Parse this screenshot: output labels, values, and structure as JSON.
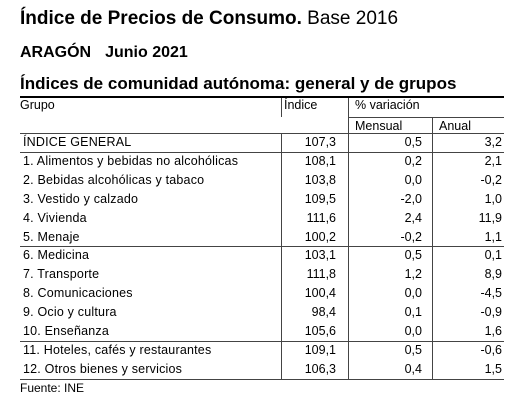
{
  "header": {
    "title_bold": "Índice de Precios de Consumo.",
    "title_rest": " Base 2016",
    "region": "ARAGÓN",
    "date": "Junio 2021",
    "section": "Índices de comunidad autónoma: general y de grupos"
  },
  "table": {
    "col_grupo": "Grupo",
    "col_indice": "Índice",
    "col_variacion": "% variación",
    "col_mensual": "Mensual",
    "col_anual": "Anual",
    "rows": [
      {
        "name": "ÍNDICE GENERAL",
        "index": "107,3",
        "mensual": "0,5",
        "anual": "3,2"
      },
      {
        "name": "1. Alimentos y bebidas no alcohólicas",
        "index": "108,1",
        "mensual": "0,2",
        "anual": "2,1"
      },
      {
        "name": "2. Bebidas alcohólicas y tabaco",
        "index": "103,8",
        "mensual": "0,0",
        "anual": "-0,2"
      },
      {
        "name": "3. Vestido y calzado",
        "index": "109,5",
        "mensual": "-2,0",
        "anual": "1,0"
      },
      {
        "name": "4. Vivienda",
        "index": "111,6",
        "mensual": "2,4",
        "anual": "11,9"
      },
      {
        "name": "5. Menaje",
        "index": "100,2",
        "mensual": "-0,2",
        "anual": "1,1"
      },
      {
        "name": "6. Medicina",
        "index": "103,1",
        "mensual": "0,5",
        "anual": "0,1"
      },
      {
        "name": "7. Transporte",
        "index": "111,8",
        "mensual": "1,2",
        "anual": "8,9"
      },
      {
        "name": "8. Comunicaciones",
        "index": "100,4",
        "mensual": "0,0",
        "anual": "-4,5"
      },
      {
        "name": "9. Ocio y cultura",
        "index": "98,4",
        "mensual": "0,1",
        "anual": "-0,9"
      },
      {
        "name": "10. Enseñanza",
        "index": "105,6",
        "mensual": "0,0",
        "anual": "1,6"
      },
      {
        "name": "11. Hoteles, cafés y restaurantes",
        "index": "109,1",
        "mensual": "0,5",
        "anual": "-0,6"
      },
      {
        "name": "12. Otros bienes y servicios",
        "index": "106,3",
        "mensual": "0,4",
        "anual": "1,5"
      }
    ]
  },
  "footer": {
    "source": "Fuente: INE"
  }
}
